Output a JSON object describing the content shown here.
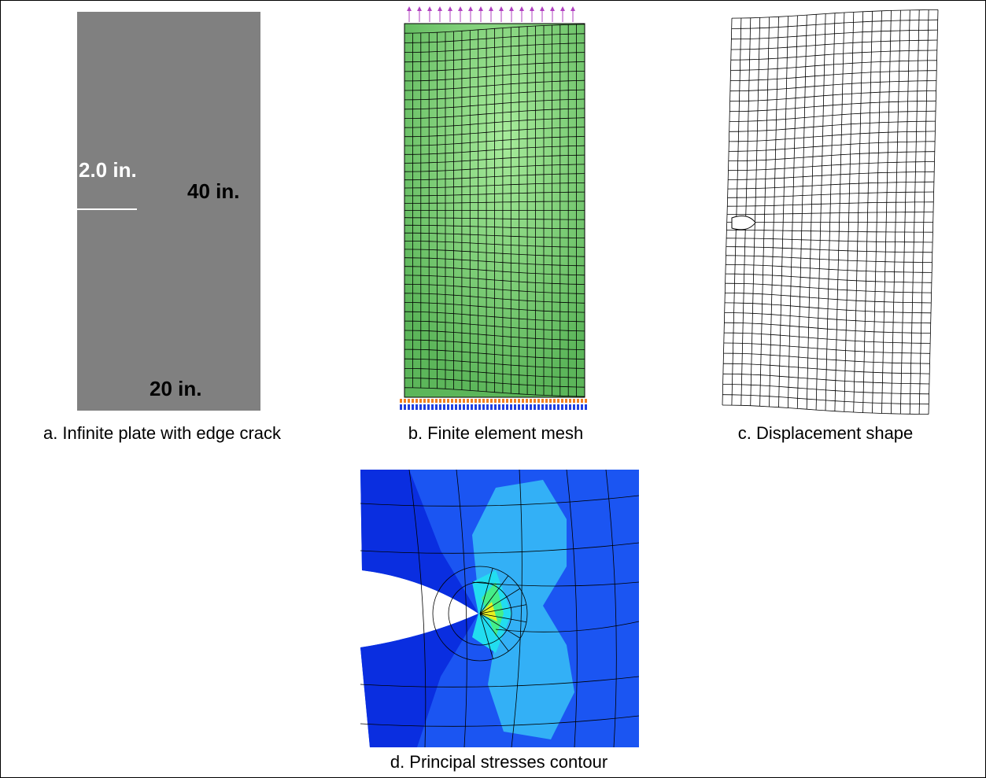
{
  "panels": [
    {
      "labels": [
        "2.0 in.",
        "40 in.",
        "20 in."
      ],
      "caption": "a. Infinite plate with edge crack"
    },
    {
      "caption": "b. Finite element mesh"
    },
    {
      "caption": "c. Displacement shape"
    },
    {
      "caption": "d. Principal stresses contour"
    }
  ]
}
